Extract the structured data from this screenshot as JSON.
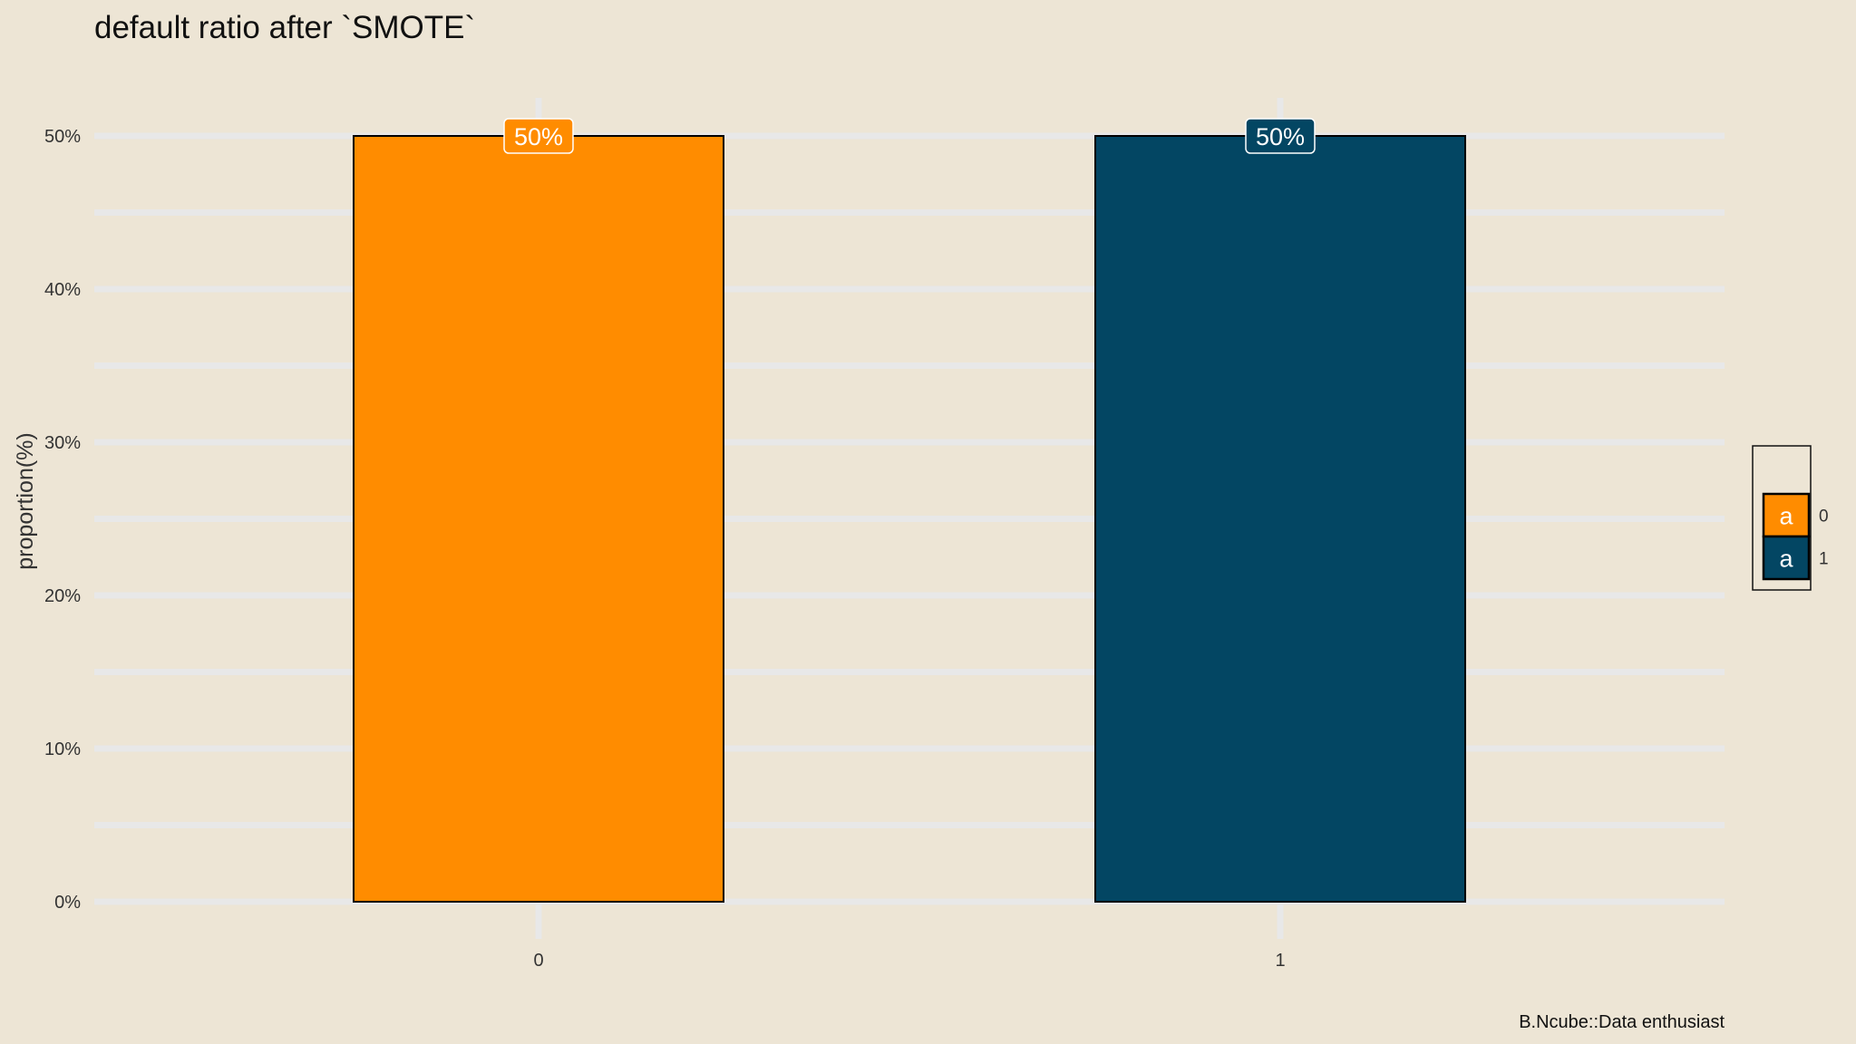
{
  "chart_data": {
    "type": "bar",
    "title": "default ratio after `SMOTE`",
    "xlabel": "",
    "ylabel": "proportion(%)",
    "caption": "B.Ncube::Data enthusiast",
    "categories": [
      "0",
      "1"
    ],
    "values": [
      50,
      50
    ],
    "data_labels": [
      "50%",
      "50%"
    ],
    "ylim": [
      0,
      50
    ],
    "y_ticks": [
      0,
      10,
      20,
      30,
      40,
      50
    ],
    "y_tick_labels": [
      "0%",
      "10%",
      "20%",
      "30%",
      "40%",
      "50%"
    ],
    "grid": true,
    "legend": {
      "placement": "right",
      "key_glyph": "a",
      "entries": [
        "0",
        "1"
      ]
    },
    "colors": [
      "#FF8C00",
      "#034663"
    ],
    "background": "#EDE5D5",
    "grid_color": "#E8E8E8"
  }
}
